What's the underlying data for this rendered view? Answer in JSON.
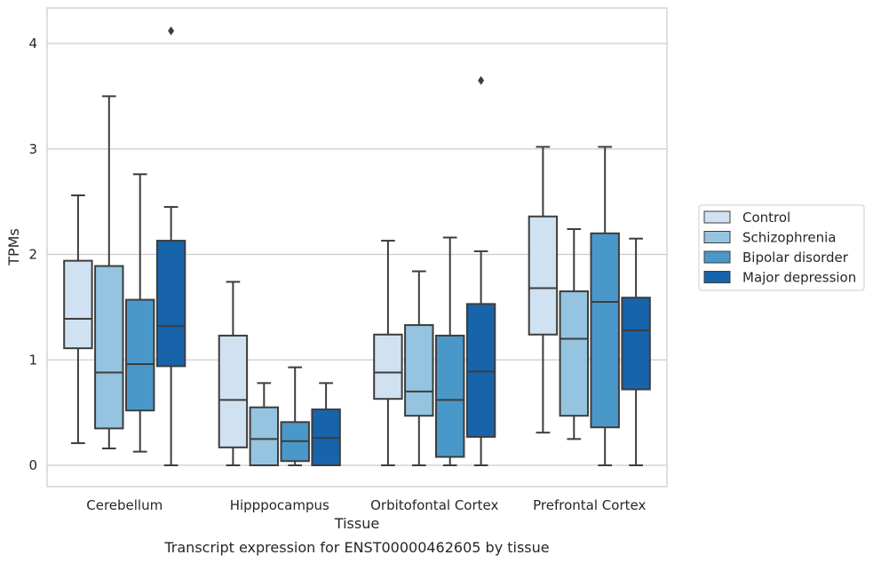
{
  "chart_data": {
    "type": "box",
    "title": "",
    "caption": "Transcript expression for ENST00000462605 by tissue",
    "xlabel": "Tissue",
    "ylabel": "TPMs",
    "ylim": [
      -0.2,
      4.35
    ],
    "yticks": [
      "0",
      "1",
      "2",
      "3",
      "4"
    ],
    "grid": "horizontal",
    "legend_position": "right",
    "categories": [
      "Cerebellum",
      "Hipppocampus",
      "Orbitofontal Cortex",
      "Prefrontal Cortex"
    ],
    "series": [
      {
        "name": "Control",
        "color": "#d0e1f2",
        "boxes": [
          {
            "whislo": 0.21,
            "q1": 1.11,
            "med": 1.39,
            "q3": 1.94,
            "whishi": 2.56,
            "fliers": []
          },
          {
            "whislo": 0.0,
            "q1": 0.17,
            "med": 0.62,
            "q3": 1.23,
            "whishi": 1.74,
            "fliers": []
          },
          {
            "whislo": 0.0,
            "q1": 0.63,
            "med": 0.88,
            "q3": 1.24,
            "whishi": 2.13,
            "fliers": []
          },
          {
            "whislo": 0.31,
            "q1": 1.24,
            "med": 1.68,
            "q3": 2.36,
            "whishi": 3.02,
            "fliers": []
          }
        ]
      },
      {
        "name": "Schizophrenia",
        "color": "#94c4df",
        "boxes": [
          {
            "whislo": 0.16,
            "q1": 0.35,
            "med": 0.88,
            "q3": 1.89,
            "whishi": 3.5,
            "fliers": []
          },
          {
            "whislo": 0.0,
            "q1": 0.0,
            "med": 0.25,
            "q3": 0.55,
            "whishi": 0.78,
            "fliers": []
          },
          {
            "whislo": 0.0,
            "q1": 0.47,
            "med": 0.7,
            "q3": 1.33,
            "whishi": 1.84,
            "fliers": []
          },
          {
            "whislo": 0.25,
            "q1": 0.47,
            "med": 1.2,
            "q3": 1.65,
            "whishi": 2.24,
            "fliers": []
          }
        ]
      },
      {
        "name": "Bipolar disorder",
        "color": "#4a98c9",
        "boxes": [
          {
            "whislo": 0.13,
            "q1": 0.52,
            "med": 0.96,
            "q3": 1.57,
            "whishi": 2.76,
            "fliers": []
          },
          {
            "whislo": 0.0,
            "q1": 0.04,
            "med": 0.23,
            "q3": 0.41,
            "whishi": 0.93,
            "fliers": []
          },
          {
            "whislo": 0.0,
            "q1": 0.08,
            "med": 0.62,
            "q3": 1.23,
            "whishi": 2.16,
            "fliers": []
          },
          {
            "whislo": 0.0,
            "q1": 0.36,
            "med": 1.55,
            "q3": 2.2,
            "whishi": 3.02,
            "fliers": []
          }
        ]
      },
      {
        "name": "Major depression",
        "color": "#1764ab",
        "boxes": [
          {
            "whislo": 0.0,
            "q1": 0.94,
            "med": 1.32,
            "q3": 2.13,
            "whishi": 2.45,
            "fliers": [
              4.12
            ]
          },
          {
            "whislo": 0.0,
            "q1": 0.0,
            "med": 0.26,
            "q3": 0.53,
            "whishi": 0.78,
            "fliers": []
          },
          {
            "whislo": 0.0,
            "q1": 0.27,
            "med": 0.89,
            "q3": 1.53,
            "whishi": 2.03,
            "fliers": [
              3.65
            ]
          },
          {
            "whislo": 0.0,
            "q1": 0.72,
            "med": 1.28,
            "q3": 1.59,
            "whishi": 2.15,
            "fliers": []
          }
        ]
      }
    ]
  }
}
